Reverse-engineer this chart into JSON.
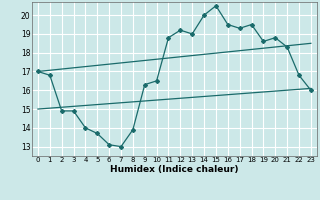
{
  "bg_color": "#cce8e8",
  "grid_color": "#aad4d4",
  "line_color": "#1a6b6b",
  "xlabel": "Humidex (Indice chaleur)",
  "xlim": [
    -0.5,
    23.5
  ],
  "ylim": [
    12.5,
    20.7
  ],
  "yticks": [
    13,
    14,
    15,
    16,
    17,
    18,
    19,
    20
  ],
  "xticks": [
    0,
    1,
    2,
    3,
    4,
    5,
    6,
    7,
    8,
    9,
    10,
    11,
    12,
    13,
    14,
    15,
    16,
    17,
    18,
    19,
    20,
    21,
    22,
    23
  ],
  "line1_x": [
    0,
    1,
    2,
    3,
    4,
    5,
    6,
    7,
    8,
    9,
    10,
    11,
    12,
    13,
    14,
    15,
    16,
    17,
    18,
    19,
    20,
    21,
    22,
    23
  ],
  "line1_y": [
    17.0,
    16.8,
    14.9,
    14.9,
    14.0,
    13.7,
    13.1,
    13.0,
    13.9,
    16.3,
    16.5,
    18.8,
    19.2,
    19.0,
    20.0,
    20.5,
    19.5,
    19.3,
    19.5,
    18.6,
    18.8,
    18.3,
    16.8,
    16.0
  ],
  "line2_x": [
    0,
    23
  ],
  "line2_y": [
    17.0,
    18.5
  ],
  "line3_x": [
    0,
    23
  ],
  "line3_y": [
    15.0,
    16.1
  ]
}
